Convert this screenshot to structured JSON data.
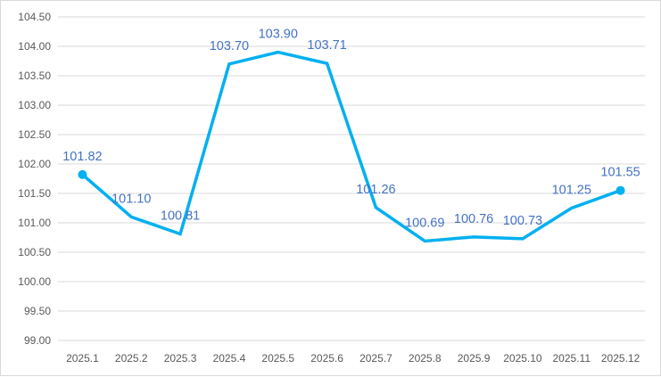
{
  "chart_data": {
    "type": "line",
    "title": "",
    "xlabel": "",
    "ylabel": "",
    "categories": [
      "2025.1",
      "2025.2",
      "2025.3",
      "2025.4",
      "2025.5",
      "2025.6",
      "2025.7",
      "2025.8",
      "2025.9",
      "2025.10",
      "2025.11",
      "2025.12"
    ],
    "values": [
      101.82,
      101.1,
      100.81,
      103.7,
      103.9,
      103.71,
      101.26,
      100.69,
      100.76,
      100.73,
      101.25,
      101.55
    ],
    "value_labels": [
      "101.82",
      "101.10",
      "100.81",
      "103.70",
      "103.90",
      "103.71",
      "101.26",
      "100.69",
      "100.76",
      "100.73",
      "101.25",
      "101.55"
    ],
    "ylim": [
      99.0,
      104.5
    ],
    "y_ticks": [
      "99.00",
      "99.50",
      "100.00",
      "100.50",
      "101.00",
      "101.50",
      "102.00",
      "102.50",
      "103.00",
      "103.50",
      "104.00",
      "104.50"
    ],
    "grid": true,
    "legend": "none",
    "markers_on": [
      "2025.1",
      "2025.12"
    ],
    "colors": {
      "line": "#00b0f0",
      "data_label": "#4472c4",
      "grid": "#d9d9d9",
      "tick": "#595959"
    }
  }
}
